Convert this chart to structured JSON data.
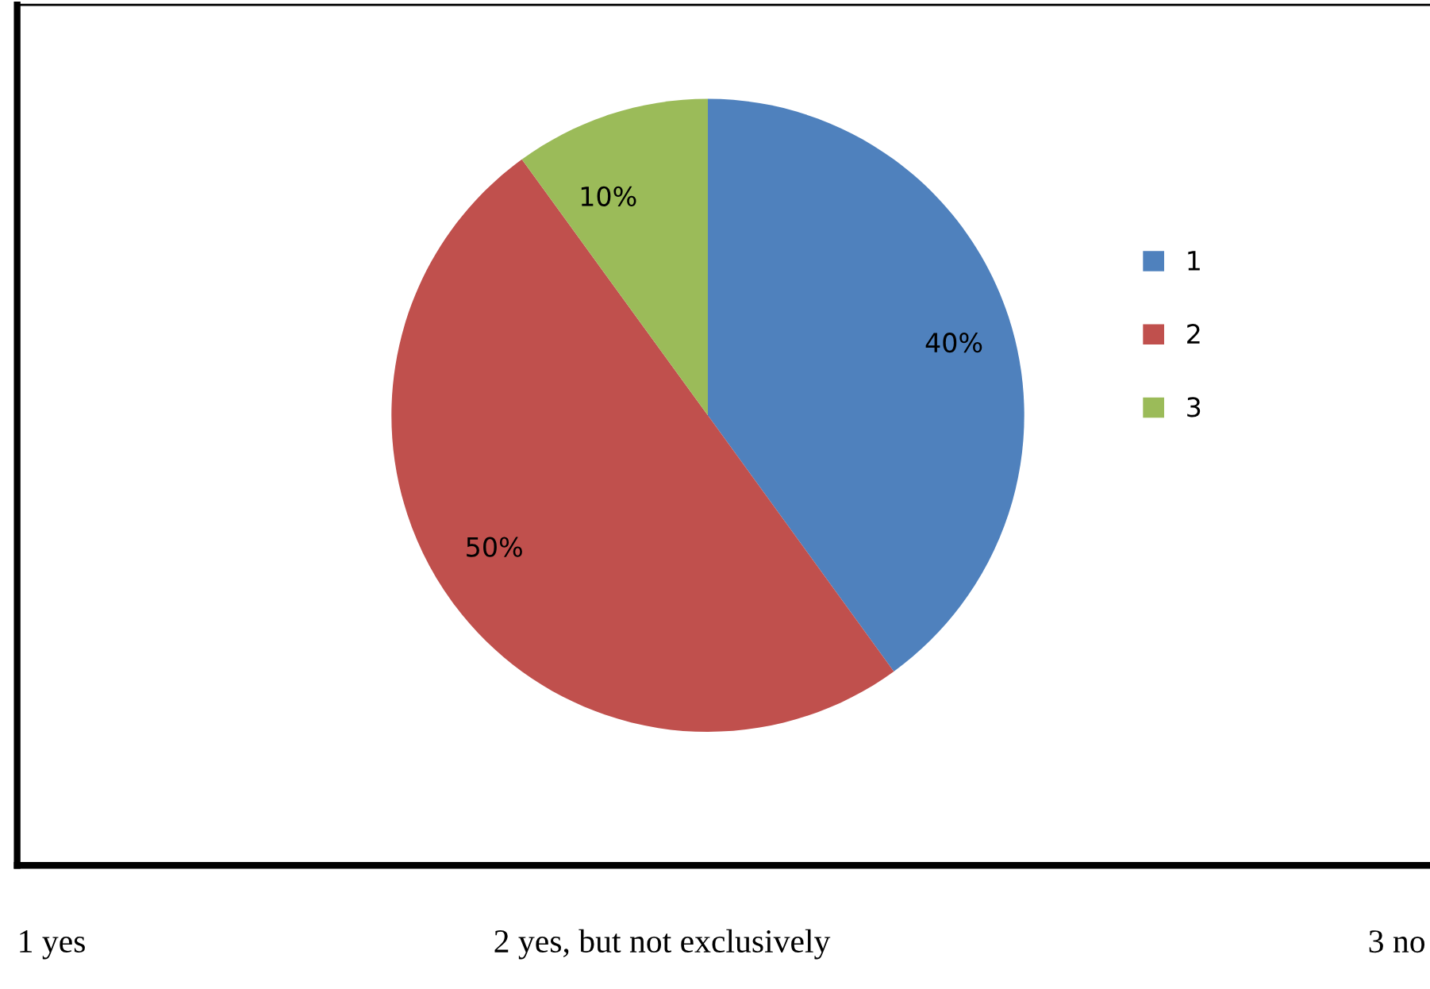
{
  "chart_data": {
    "type": "pie",
    "categories": [
      "1",
      "2",
      "3"
    ],
    "values": [
      40,
      50,
      10
    ],
    "colors": [
      "#4f81bd",
      "#c0504d",
      "#9bbb59"
    ],
    "value_labels": [
      "40%",
      "50%",
      "10%"
    ],
    "legend": "right",
    "annotations": [
      "1 yes",
      "2 yes, but not exclusively",
      "3 no"
    ]
  }
}
